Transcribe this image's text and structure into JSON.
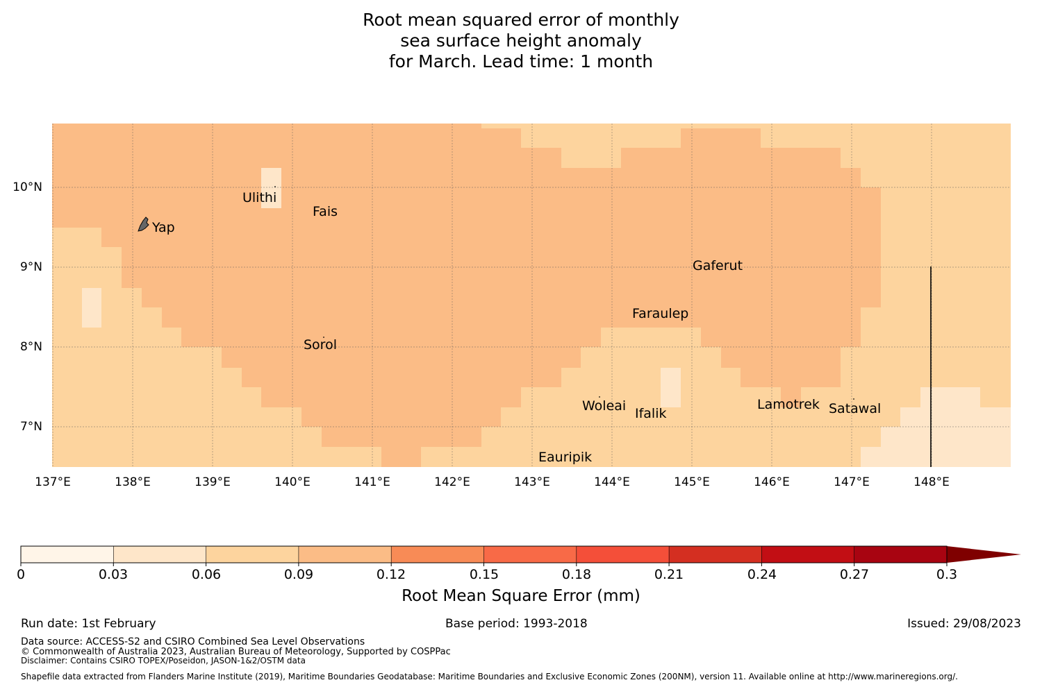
{
  "title": {
    "line1": "Root mean squared error of monthly",
    "line2": "sea surface height anomaly",
    "line3": "for March. Lead time: 1 month"
  },
  "map": {
    "lon_ticks": [
      "137°E",
      "138°E",
      "139°E",
      "140°E",
      "141°E",
      "142°E",
      "143°E",
      "144°E",
      "145°E",
      "146°E",
      "147°E",
      "148°E"
    ],
    "lat_ticks": [
      "10°N",
      "9°N",
      "8°N",
      "7°N"
    ],
    "places": [
      "Yap",
      "Ulithi",
      "Fais",
      "Gaferut",
      "Faraulep",
      "Sorol",
      "Woleai",
      "Ifalik",
      "Lamotrek",
      "Satawal",
      "Eauripik"
    ]
  },
  "colors": {
    "c0": "#fff5e8",
    "c1": "#fee6c9",
    "c2": "#fdd49e",
    "c3": "#fbbc86",
    "c4": "#f88b56",
    "c5": "#f86a47",
    "c6": "#f44f39",
    "c7": "#d42f21",
    "c8": "#c20e14",
    "c9": "#a80411",
    "c10": "#7f0000"
  },
  "colorbar": {
    "ticks": [
      "0",
      "0.03",
      "0.06",
      "0.09",
      "0.12",
      "0.15",
      "0.18",
      "0.21",
      "0.24",
      "0.27",
      "0.3"
    ],
    "label": "Root Mean Square Error (mm)"
  },
  "footer": {
    "run_date": "Run date: 1st February",
    "base_period": "Base period: 1993-2018",
    "issued": "Issued: 29/08/2023",
    "data_source": "Data source: ACCESS-S2 and CSIRO Combined Sea Level Observations",
    "copyright": "© Commonwealth of Australia 2023, Australian Bureau of Meteorology, Supported by COSPPac",
    "disclaimer": "Disclaimer: Contains CSIRO TOPEX/Poseidon, JASON-1&2/OSTM data",
    "shapefile": "Shapefile data extracted from Flanders Marine Institute (2019), Maritime Boundaries Geodatabase: Maritime Boundaries and Exclusive Economic Zones (200NM), version 11. Available online at http://www.marineregions.org/."
  }
}
